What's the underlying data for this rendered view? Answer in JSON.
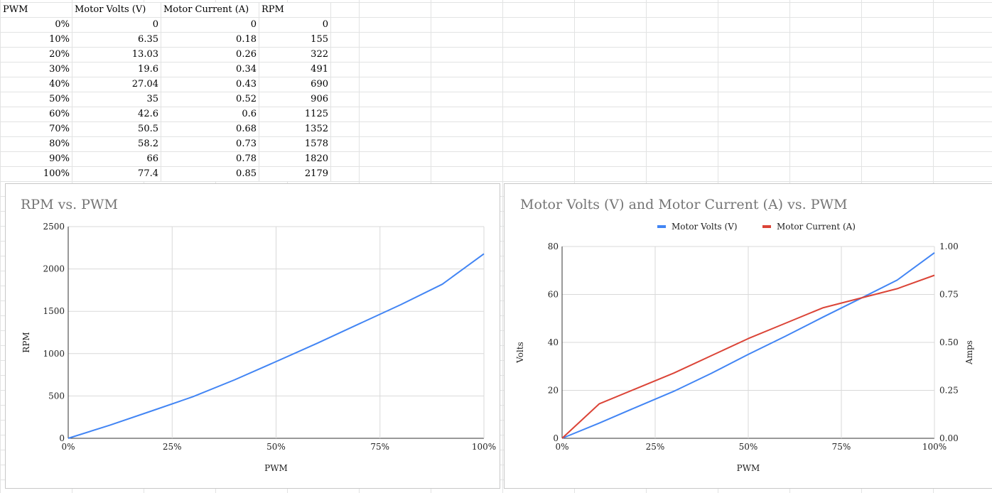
{
  "sheet": {
    "headers": [
      "PWM",
      "Motor Volts (V)",
      "Motor Current (A)",
      "RPM"
    ],
    "rows": [
      [
        "0%",
        "0",
        "0",
        "0"
      ],
      [
        "10%",
        "6.35",
        "0.18",
        "155"
      ],
      [
        "20%",
        "13.03",
        "0.26",
        "322"
      ],
      [
        "30%",
        "19.6",
        "0.34",
        "491"
      ],
      [
        "40%",
        "27.04",
        "0.43",
        "690"
      ],
      [
        "50%",
        "35",
        "0.52",
        "906"
      ],
      [
        "60%",
        "42.6",
        "0.6",
        "1125"
      ],
      [
        "70%",
        "50.5",
        "0.68",
        "1352"
      ],
      [
        "80%",
        "58.2",
        "0.73",
        "1578"
      ],
      [
        "90%",
        "66",
        "0.78",
        "1820"
      ],
      [
        "100%",
        "77.4",
        "0.85",
        "2179"
      ]
    ]
  },
  "chart_data": [
    {
      "type": "line",
      "title": "RPM vs. PWM",
      "xlabel": "PWM",
      "ylabel": "RPM",
      "x": [
        0,
        0.1,
        0.2,
        0.3,
        0.4,
        0.5,
        0.6,
        0.7,
        0.8,
        0.9,
        1.0
      ],
      "xticks": [
        "0%",
        "25%",
        "50%",
        "75%",
        "100%"
      ],
      "xtick_values": [
        0,
        0.25,
        0.5,
        0.75,
        1.0
      ],
      "ylim": [
        0,
        2500
      ],
      "yticks": [
        0,
        500,
        1000,
        1500,
        2000,
        2500
      ],
      "grid": true,
      "series": [
        {
          "name": "RPM",
          "color": "#4285f4",
          "values": [
            0,
            155,
            322,
            491,
            690,
            906,
            1125,
            1352,
            1578,
            1820,
            2179
          ]
        }
      ]
    },
    {
      "type": "line",
      "title": "Motor Volts (V) and Motor Current (A) vs. PWM",
      "xlabel": "PWM",
      "ylabel": "Volts",
      "y2label": "Amps",
      "x": [
        0,
        0.1,
        0.2,
        0.3,
        0.4,
        0.5,
        0.6,
        0.7,
        0.8,
        0.9,
        1.0
      ],
      "xticks": [
        "0%",
        "25%",
        "50%",
        "75%",
        "100%"
      ],
      "xtick_values": [
        0,
        0.25,
        0.5,
        0.75,
        1.0
      ],
      "ylim": [
        0,
        80
      ],
      "yticks": [
        0,
        20,
        40,
        60,
        80
      ],
      "y2lim": [
        0,
        1.0
      ],
      "y2ticks": [
        "0.00",
        "0.25",
        "0.50",
        "0.75",
        "1.00"
      ],
      "y2tick_values": [
        0,
        0.25,
        0.5,
        0.75,
        1.0
      ],
      "grid": true,
      "legend": "top",
      "series": [
        {
          "name": "Motor Volts (V)",
          "color": "#4285f4",
          "axis": "left",
          "values": [
            0,
            6.35,
            13.03,
            19.6,
            27.04,
            35,
            42.6,
            50.5,
            58.2,
            66,
            77.4
          ]
        },
        {
          "name": "Motor Current (A)",
          "color": "#db4437",
          "axis": "right",
          "values": [
            0,
            0.18,
            0.26,
            0.34,
            0.43,
            0.52,
            0.6,
            0.68,
            0.73,
            0.78,
            0.85
          ]
        }
      ]
    }
  ]
}
